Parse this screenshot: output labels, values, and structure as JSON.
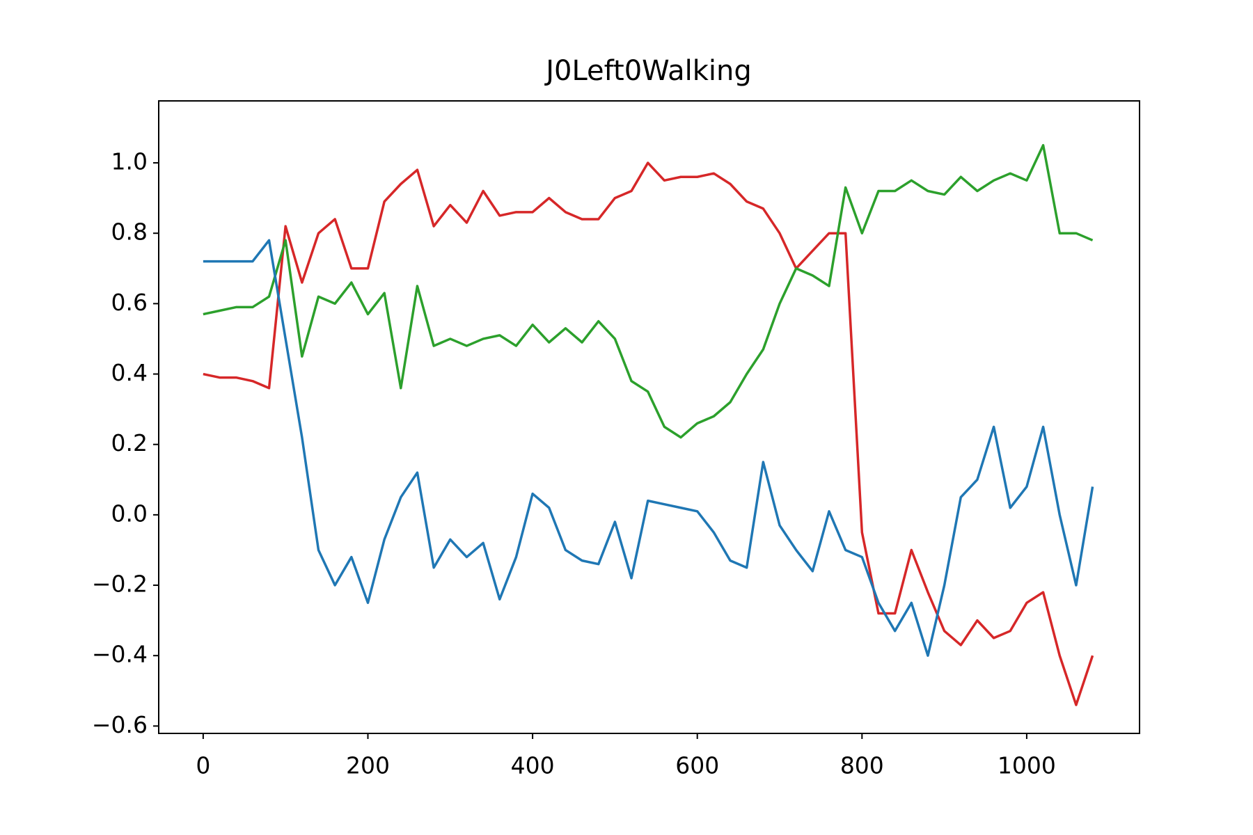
{
  "chart_data": {
    "type": "line",
    "title": "J0Left0Walking",
    "x": [
      0,
      20,
      40,
      60,
      80,
      100,
      120,
      140,
      160,
      180,
      200,
      220,
      240,
      260,
      280,
      300,
      320,
      340,
      360,
      380,
      400,
      420,
      440,
      460,
      480,
      500,
      520,
      540,
      560,
      580,
      600,
      620,
      640,
      660,
      680,
      700,
      720,
      740,
      760,
      780,
      800,
      820,
      840,
      860,
      880,
      900,
      920,
      940,
      960,
      980,
      1000,
      1020,
      1040,
      1060,
      1080
    ],
    "series": [
      {
        "color": "#d62728",
        "values": [
          0.4,
          0.39,
          0.39,
          0.38,
          0.36,
          0.82,
          0.66,
          0.8,
          0.84,
          0.7,
          0.7,
          0.89,
          0.94,
          0.98,
          0.82,
          0.88,
          0.83,
          0.92,
          0.85,
          0.86,
          0.86,
          0.9,
          0.86,
          0.84,
          0.84,
          0.9,
          0.92,
          1.0,
          0.95,
          0.96,
          0.96,
          0.97,
          0.94,
          0.89,
          0.87,
          0.8,
          0.7,
          0.75,
          0.8,
          0.8,
          -0.05,
          -0.28,
          -0.28,
          -0.1,
          -0.22,
          -0.33,
          -0.37,
          -0.3,
          -0.35,
          -0.33,
          -0.25,
          -0.22,
          -0.4,
          -0.54,
          -0.4
        ]
      },
      {
        "color": "#2ca02c",
        "values": [
          0.57,
          0.58,
          0.59,
          0.59,
          0.62,
          0.78,
          0.45,
          0.62,
          0.6,
          0.66,
          0.57,
          0.63,
          0.36,
          0.65,
          0.48,
          0.5,
          0.48,
          0.5,
          0.51,
          0.48,
          0.54,
          0.49,
          0.53,
          0.49,
          0.55,
          0.5,
          0.38,
          0.35,
          0.25,
          0.22,
          0.26,
          0.28,
          0.32,
          0.4,
          0.47,
          0.6,
          0.7,
          0.68,
          0.65,
          0.93,
          0.8,
          0.92,
          0.92,
          0.95,
          0.92,
          0.91,
          0.96,
          0.92,
          0.95,
          0.97,
          0.95,
          1.05,
          0.8,
          0.8,
          0.78
        ]
      },
      {
        "color": "#1f77b4",
        "values": [
          0.72,
          0.72,
          0.72,
          0.72,
          0.78,
          0.5,
          0.22,
          -0.1,
          -0.2,
          -0.12,
          -0.25,
          -0.07,
          0.05,
          0.12,
          -0.15,
          -0.07,
          -0.12,
          -0.08,
          -0.24,
          -0.12,
          0.06,
          0.02,
          -0.1,
          -0.13,
          -0.14,
          -0.02,
          -0.18,
          0.04,
          0.03,
          0.02,
          0.01,
          -0.05,
          -0.13,
          -0.15,
          0.15,
          -0.03,
          -0.1,
          -0.16,
          0.01,
          -0.1,
          -0.12,
          -0.25,
          -0.33,
          -0.25,
          -0.4,
          -0.2,
          0.05,
          0.1,
          0.25,
          0.02,
          0.08,
          0.25,
          0.0,
          -0.2,
          0.08
        ]
      }
    ],
    "xlim": [
      -54,
      1137
    ],
    "ylim": [
      -0.621,
      1.176
    ],
    "xticks": [
      0,
      200,
      400,
      600,
      800,
      1000
    ],
    "yticks": [
      {
        "value": -0.6,
        "label": "−0.6"
      },
      {
        "value": -0.4,
        "label": "−0.4"
      },
      {
        "value": -0.2,
        "label": "−0.2"
      },
      {
        "value": 0,
        "label": "0.0"
      },
      0.2,
      0.4,
      0.6,
      0.8,
      {
        "value": 1,
        "label": "1.0"
      }
    ],
    "grid": false
  }
}
